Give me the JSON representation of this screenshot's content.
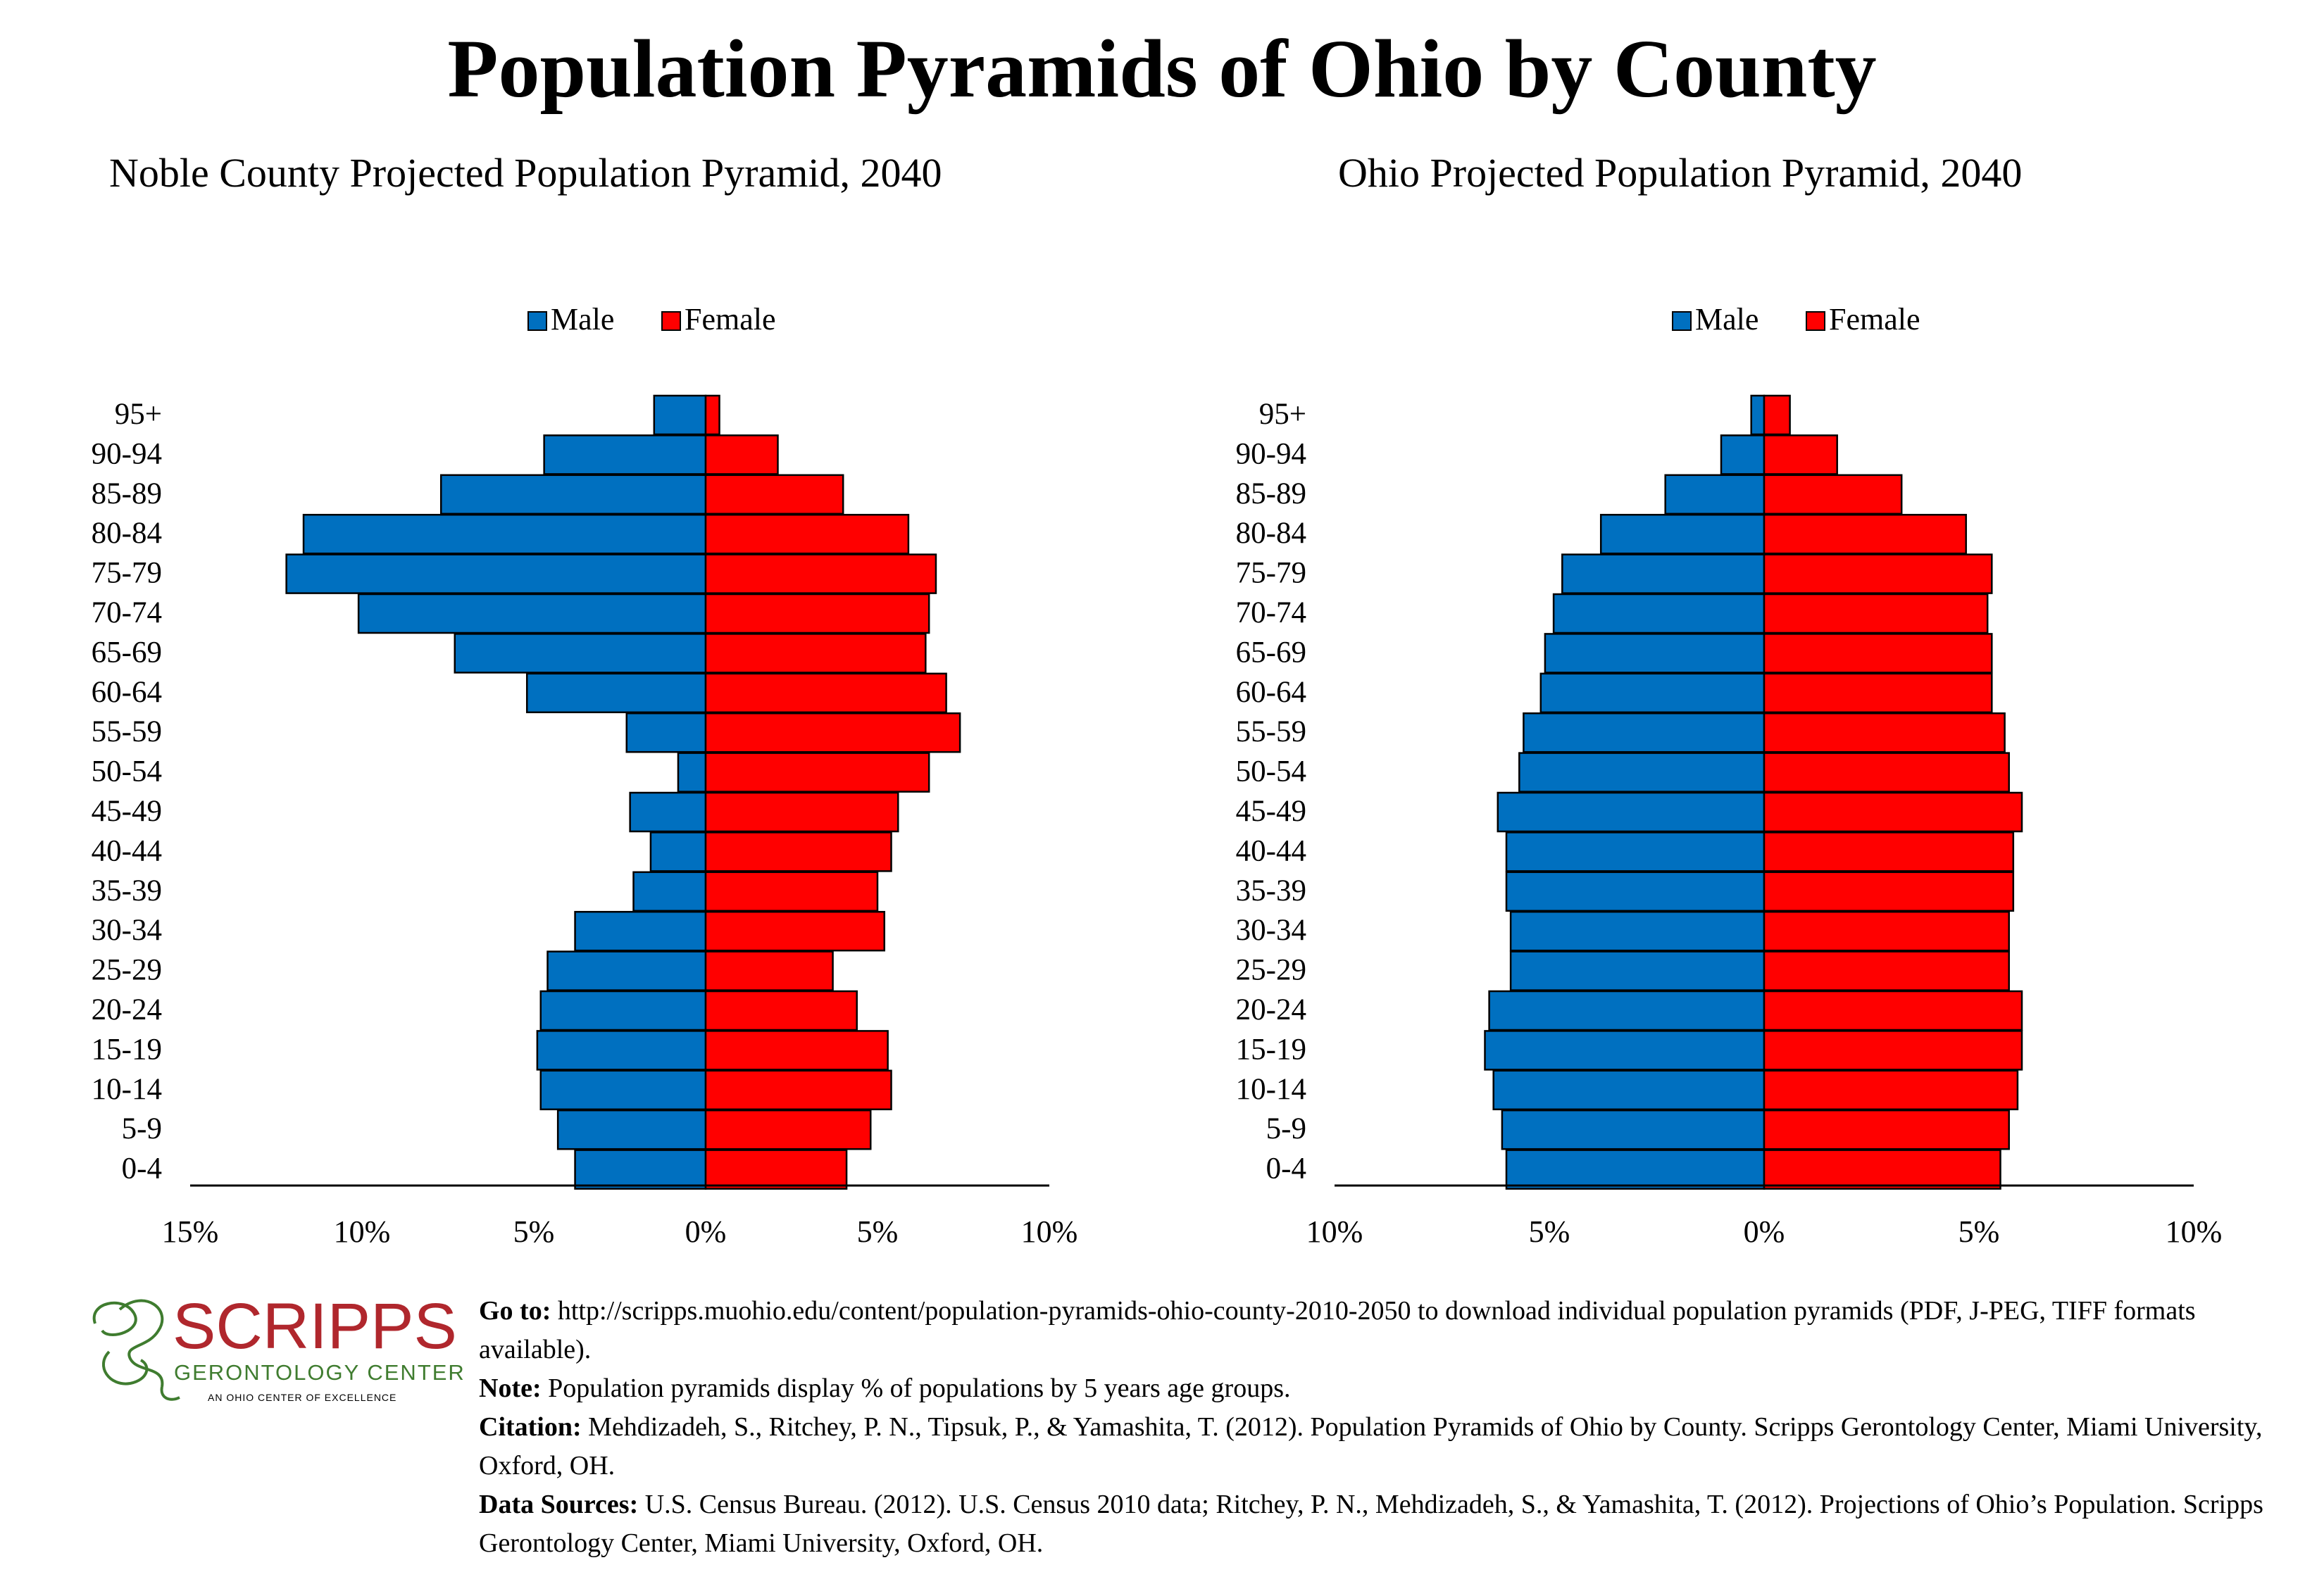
{
  "title": "Population Pyramids of Ohio by County",
  "colors": {
    "male": "#0070C0",
    "female": "#FF0000",
    "logo_red": "#B0272D",
    "logo_green": "#3F7C2F"
  },
  "chart_data": [
    {
      "type": "bar",
      "title": "Noble County Projected Population Pyramid, 2040",
      "orientation": "horizontal-pyramid",
      "legend_position": "top",
      "grid": false,
      "categories": [
        "0-4",
        "5-9",
        "10-14",
        "15-19",
        "20-24",
        "25-29",
        "30-34",
        "35-39",
        "40-44",
        "45-49",
        "50-54",
        "55-59",
        "60-64",
        "65-69",
        "70-74",
        "75-79",
        "80-84",
        "85-89",
        "90-94",
        "95+"
      ],
      "series": [
        {
          "name": "Male",
          "values": [
            3.8,
            4.3,
            4.8,
            4.9,
            4.8,
            4.6,
            3.8,
            2.1,
            1.6,
            2.2,
            0.8,
            2.3,
            5.2,
            7.3,
            10.1,
            12.2,
            11.7,
            7.7,
            4.7,
            1.5
          ]
        },
        {
          "name": "Female",
          "values": [
            4.1,
            4.8,
            5.4,
            5.3,
            4.4,
            3.7,
            5.2,
            5.0,
            5.4,
            5.6,
            6.5,
            7.4,
            7.0,
            6.4,
            6.5,
            6.7,
            5.9,
            4.0,
            2.1,
            0.4
          ]
        }
      ],
      "xlim": [
        -15,
        10
      ],
      "xticks": [
        "15%",
        "10%",
        "5%",
        "0%",
        "5%",
        "10%"
      ]
    },
    {
      "type": "bar",
      "title": "Ohio Projected Population Pyramid, 2040",
      "orientation": "horizontal-pyramid",
      "legend_position": "top",
      "grid": false,
      "categories": [
        "0-4",
        "5-9",
        "10-14",
        "15-19",
        "20-24",
        "25-29",
        "30-34",
        "35-39",
        "40-44",
        "45-49",
        "50-54",
        "55-59",
        "60-64",
        "65-69",
        "70-74",
        "75-79",
        "80-84",
        "85-89",
        "90-94",
        "95+"
      ],
      "series": [
        {
          "name": "Male",
          "values": [
            6.0,
            6.1,
            6.3,
            6.5,
            6.4,
            5.9,
            5.9,
            6.0,
            6.0,
            6.2,
            5.7,
            5.6,
            5.2,
            5.1,
            4.9,
            4.7,
            3.8,
            2.3,
            1.0,
            0.3
          ]
        },
        {
          "name": "Female",
          "values": [
            5.5,
            5.7,
            5.9,
            6.0,
            6.0,
            5.7,
            5.7,
            5.8,
            5.8,
            6.0,
            5.7,
            5.6,
            5.3,
            5.3,
            5.2,
            5.3,
            4.7,
            3.2,
            1.7,
            0.6
          ]
        }
      ],
      "xlim": [
        -10,
        10
      ],
      "xticks": [
        "10%",
        "5%",
        "0%",
        "5%",
        "10%"
      ]
    }
  ],
  "logo": {
    "name": "SCRIPPS",
    "subtitle": "GERONTOLOGY CENTER",
    "tagline": "AN OHIO CENTER OF EXCELLENCE"
  },
  "footer": {
    "goto_label": "Go to:",
    "goto_text": " http://scripps.muohio.edu/content/population-pyramids-ohio-county-2010-2050 to download individual population pyramids (PDF, J-PEG, TIFF formats available).",
    "note_label": "Note:",
    "note_text": " Population pyramids display % of populations by 5 years age groups.",
    "citation_label": "Citation:",
    "citation_text": " Mehdizadeh, S., Ritchey, P. N., Tipsuk, P., & Yamashita, T. (2012). Population Pyramids of Ohio by County. Scripps Gerontology Center, Miami University, Oxford, OH.",
    "sources_label": "Data Sources:",
    "sources_text": " U.S. Census Bureau. (2012). U.S. Census 2010 data; Ritchey, P. N., Mehdizadeh, S., & Yamashita, T. (2012). Projections of Ohio’s Population. Scripps Gerontology Center, Miami University, Oxford, OH."
  }
}
